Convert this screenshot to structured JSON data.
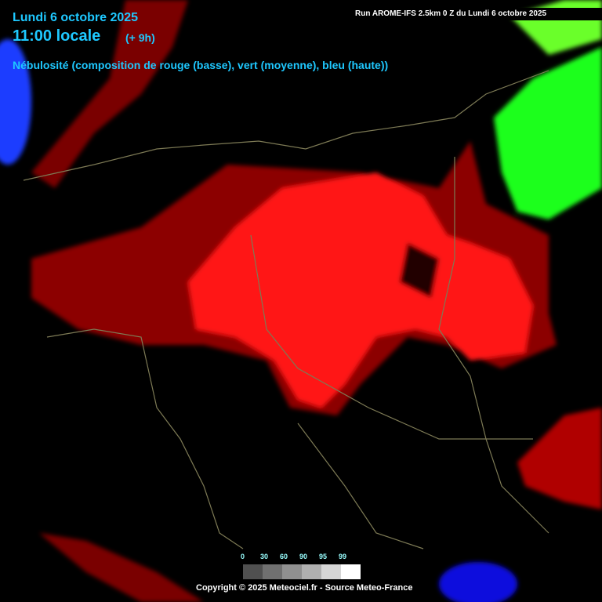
{
  "header": {
    "date": "Lundi 6 octobre 2025",
    "time": "11:00 locale",
    "offset": "(+ 9h)",
    "description": "Nébulosité (composition de rouge (basse), vert (moyenne), bleu (haute))",
    "run": "Run AROME-IFS 2.5km 0 Z du Lundi 6 octobre 2025"
  },
  "legend": {
    "ticks": [
      0,
      30,
      60,
      90,
      95,
      99
    ]
  },
  "footer": {
    "copyright": "Copyright © 2025 Meteociel.fr - Source Meteo-France"
  }
}
